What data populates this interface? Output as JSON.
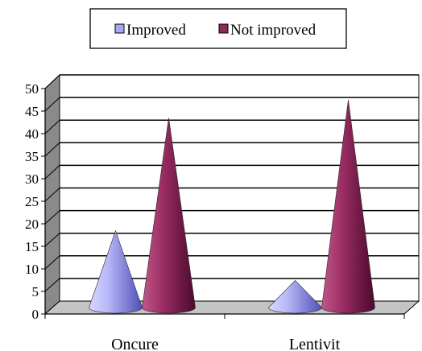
{
  "chart_data": {
    "type": "bar",
    "shape": "cone-3d",
    "categories": [
      "Oncure",
      "Lentivit"
    ],
    "series": [
      {
        "name": "Improved",
        "values": [
          17,
          6
        ],
        "color": "#a8a8f0"
      },
      {
        "name": "Not improved",
        "values": [
          42,
          46
        ],
        "color": "#8c2a5a"
      }
    ],
    "ylim": [
      0,
      50
    ],
    "yticks": [
      0,
      5,
      10,
      15,
      20,
      25,
      30,
      35,
      40,
      45,
      50
    ],
    "grid": true,
    "legend_position": "top"
  }
}
